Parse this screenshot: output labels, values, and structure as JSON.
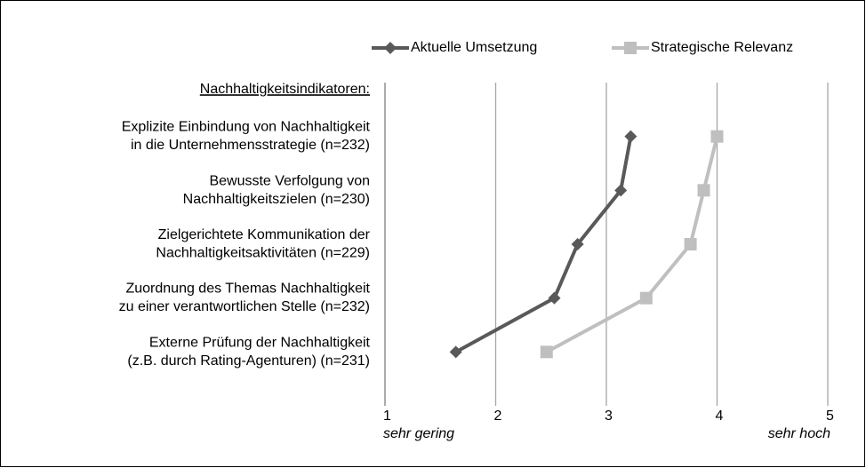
{
  "chart_data": {
    "type": "line",
    "heading": "Nachhaltigkeitsindikatoren:",
    "categories": [
      [
        "Explizite Einbindung von Nachhaltigkeit",
        "in die Unternehmensstrategie (n=232)"
      ],
      [
        "Bewusste Verfolgung von",
        "Nachhaltigkeitszielen (n=230)"
      ],
      [
        "Zielgerichtete Kommunikation der",
        "Nachhaltigkeitsaktivitäten (n=229)"
      ],
      [
        "Zuordnung des Themas Nachhaltigkeit",
        "zu einer verantwortlichen Stelle (n=232)"
      ],
      [
        "Externe Prüfung der Nachhaltigkeit",
        "(z.B. durch Rating-Agenturen) (n=231)"
      ]
    ],
    "series": [
      {
        "name": "Aktuelle Umsetzung",
        "color": "#595959",
        "marker": "diamond",
        "values": [
          3.22,
          3.13,
          2.74,
          2.53,
          1.64
        ]
      },
      {
        "name": "Strategische Relevanz",
        "color": "#bfbfbf",
        "marker": "square",
        "values": [
          4.0,
          3.88,
          3.76,
          3.36,
          2.46
        ]
      }
    ],
    "xlim": [
      1,
      5
    ],
    "xticks": [
      1,
      2,
      3,
      4,
      5
    ],
    "grid": true,
    "axis_annotations": [
      "sehr gering",
      "sehr hoch"
    ],
    "legend": "top"
  }
}
